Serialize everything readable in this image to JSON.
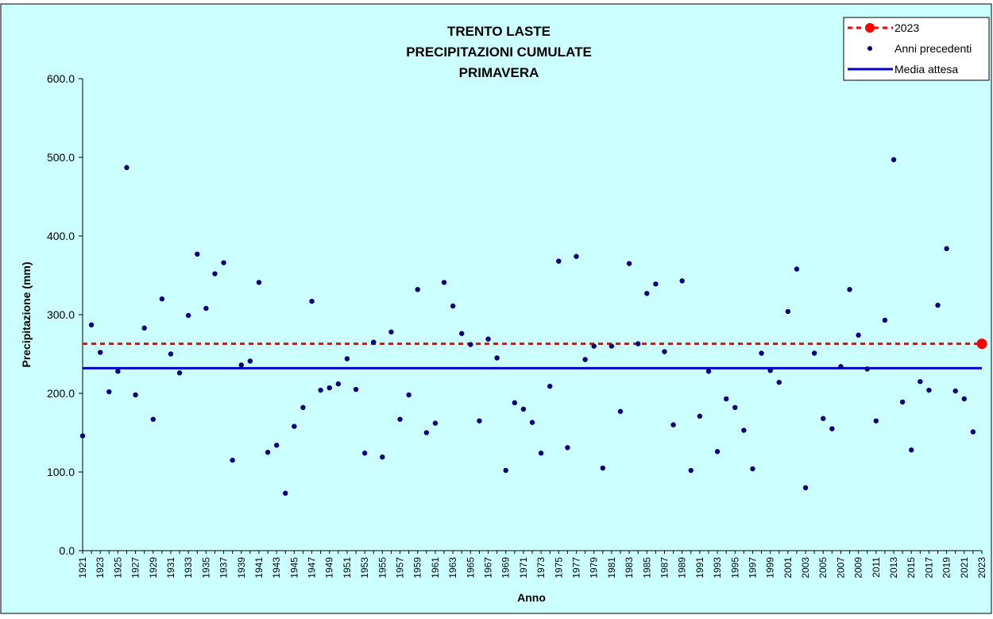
{
  "colors": {
    "background": "#ccffff",
    "frame": "#000000",
    "points": "#000080",
    "current_year": "#ff0000",
    "mean_line": "#0000cc"
  },
  "chart_data": {
    "type": "scatter",
    "title_lines": [
      "TRENTO LASTE",
      "PRECIPITAZIONI CUMULATE",
      "PRIMAVERA"
    ],
    "xlabel": "Anno",
    "ylabel": "Precipitazione (mm)",
    "ylim": [
      0,
      600
    ],
    "yticks": [
      "0.0",
      "100.0",
      "200.0",
      "300.0",
      "400.0",
      "500.0",
      "600.0"
    ],
    "xlim": [
      1921,
      2023
    ],
    "xtick_step": 2,
    "grid": false,
    "legend_position": "top-right",
    "legend": [
      {
        "label": "2023",
        "style": "red dashed line with large red marker"
      },
      {
        "label": "Anni precedenti",
        "style": "dark blue dot"
      },
      {
        "label": "Media attesa",
        "style": "solid blue line"
      }
    ],
    "series": [
      {
        "name": "Anni precedenti",
        "x": [
          1921,
          1922,
          1923,
          1924,
          1925,
          1926,
          1927,
          1928,
          1929,
          1930,
          1931,
          1932,
          1933,
          1934,
          1935,
          1936,
          1937,
          1938,
          1939,
          1940,
          1941,
          1942,
          1943,
          1944,
          1945,
          1946,
          1947,
          1948,
          1949,
          1950,
          1951,
          1952,
          1953,
          1954,
          1955,
          1956,
          1957,
          1958,
          1959,
          1960,
          1961,
          1962,
          1963,
          1964,
          1965,
          1966,
          1967,
          1968,
          1969,
          1970,
          1971,
          1972,
          1973,
          1974,
          1975,
          1976,
          1977,
          1978,
          1979,
          1980,
          1981,
          1982,
          1983,
          1984,
          1985,
          1986,
          1987,
          1988,
          1989,
          1990,
          1991,
          1992,
          1993,
          1994,
          1995,
          1996,
          1997,
          1998,
          1999,
          2000,
          2001,
          2002,
          2003,
          2004,
          2005,
          2006,
          2007,
          2008,
          2009,
          2010,
          2011,
          2012,
          2013,
          2014,
          2015,
          2016,
          2017,
          2018,
          2019,
          2020,
          2021,
          2022
        ],
        "y": [
          146,
          287,
          252,
          202,
          228,
          487,
          198,
          283,
          167,
          320,
          250,
          226,
          299,
          377,
          308,
          352,
          366,
          115,
          236,
          241,
          341,
          125,
          134,
          73,
          158,
          182,
          317,
          204,
          207,
          212,
          244,
          205,
          124,
          265,
          119,
          278,
          167,
          198,
          332,
          150,
          162,
          341,
          311,
          276,
          262,
          165,
          269,
          245,
          102,
          188,
          180,
          163,
          124,
          209,
          368,
          131,
          374,
          243,
          260,
          105,
          260,
          177,
          365,
          263,
          327,
          339,
          253,
          160,
          343,
          102,
          171,
          228,
          126,
          193,
          182,
          153,
          104,
          251,
          229,
          214,
          304,
          358,
          80,
          251,
          168,
          155,
          234,
          332,
          274,
          231,
          165,
          293,
          497,
          189,
          128,
          215,
          204,
          312,
          384,
          203,
          193,
          151
        ]
      },
      {
        "name": "2023",
        "x": [
          2023
        ],
        "y": [
          263
        ],
        "reference_line": 263
      },
      {
        "name": "Media attesa",
        "constant": 232
      }
    ]
  }
}
